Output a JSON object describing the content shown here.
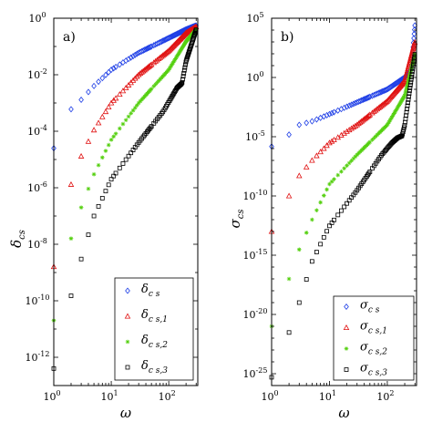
{
  "chart_data": [
    {
      "type": "scatter",
      "panel_label": "a)",
      "xlabel": "ω",
      "ylabel": "δcs",
      "xscale": "log",
      "yscale": "log",
      "xlim": [
        1,
        320
      ],
      "ylim": [
        1e-13,
        1
      ],
      "xticks": [
        {
          "v": 1,
          "b": "10",
          "e": "0"
        },
        {
          "v": 10,
          "b": "10",
          "e": "1"
        },
        {
          "v": 100,
          "b": "10",
          "e": "2"
        }
      ],
      "yticks": [
        {
          "v": 1,
          "b": "10",
          "e": "0"
        },
        {
          "v": 0.01,
          "b": "10",
          "e": "-2"
        },
        {
          "v": 0.0001,
          "b": "10",
          "e": "-4"
        },
        {
          "v": 1e-06,
          "b": "10",
          "e": "-6"
        },
        {
          "v": 1e-08,
          "b": "10",
          "e": "-8"
        },
        {
          "v": 1e-10,
          "b": "10",
          "e": "-10"
        },
        {
          "v": 1e-12,
          "b": "10",
          "e": "-12"
        }
      ],
      "legend_position": "bottom-right",
      "series": [
        {
          "name": "δcs",
          "sym": "δ",
          "sub": "c s",
          "marker": "diamond",
          "color": "#1f3fe6",
          "anchors": [
            [
              1,
              2.5e-05
            ],
            [
              2,
              0.0006
            ],
            [
              3,
              0.0013
            ],
            [
              5,
              0.004
            ],
            [
              10,
              0.015
            ],
            [
              30,
              0.06
            ],
            [
              100,
              0.2
            ],
            [
              200,
              0.4
            ],
            [
              300,
              0.55
            ]
          ]
        },
        {
          "name": "δcs,1",
          "sym": "δ",
          "sub": "c s,1",
          "marker": "triangle",
          "color": "#e01010",
          "anchors": [
            [
              1,
              1.6e-09
            ],
            [
              2,
              1.3e-06
            ],
            [
              3,
              1.3e-05
            ],
            [
              5,
              0.00011
            ],
            [
              10,
              0.001
            ],
            [
              30,
              0.01
            ],
            [
              100,
              0.07
            ],
            [
              200,
              0.3
            ],
            [
              300,
              0.5
            ]
          ]
        },
        {
          "name": "δcs,2",
          "sym": "δ",
          "sub": "c s,2",
          "marker": "star",
          "color": "#55d010",
          "anchors": [
            [
              1,
              2e-11
            ],
            [
              2,
              1.6e-08
            ],
            [
              3,
              2e-07
            ],
            [
              5,
              3e-06
            ],
            [
              10,
              5e-05
            ],
            [
              30,
              0.001
            ],
            [
              100,
              0.015
            ],
            [
              200,
              0.15
            ],
            [
              300,
              0.4
            ]
          ]
        },
        {
          "name": "δcs,3",
          "sym": "δ",
          "sub": "c s,3",
          "marker": "square",
          "color": "#000000",
          "anchors": [
            [
              1,
              4e-13
            ],
            [
              2,
              1.5e-10
            ],
            [
              3,
              3e-09
            ],
            [
              5,
              1e-07
            ],
            [
              10,
              2e-06
            ],
            [
              30,
              4e-05
            ],
            [
              80,
              0.0005
            ],
            [
              110,
              0.0015
            ],
            [
              140,
              0.0035
            ],
            [
              170,
              0.005
            ],
            [
              200,
              0.03
            ],
            [
              300,
              0.4
            ]
          ]
        }
      ]
    },
    {
      "type": "scatter",
      "panel_label": "b)",
      "xlabel": "ω",
      "ylabel": "σcs",
      "xscale": "log",
      "yscale": "log",
      "xlim": [
        1,
        320
      ],
      "ylim": [
        1e-26,
        100000.0
      ],
      "xticks": [
        {
          "v": 1,
          "b": "10",
          "e": "0"
        },
        {
          "v": 10,
          "b": "10",
          "e": "1"
        },
        {
          "v": 100,
          "b": "10",
          "e": "2"
        }
      ],
      "yticks": [
        {
          "v": 100000,
          "b": "10",
          "e": "5"
        },
        {
          "v": 1,
          "b": "10",
          "e": "0"
        },
        {
          "v": 1e-05,
          "b": "10",
          "e": "-5"
        },
        {
          "v": 1e-10,
          "b": "10",
          "e": "-10"
        },
        {
          "v": 1e-15,
          "b": "10",
          "e": "-15"
        },
        {
          "v": 1e-20,
          "b": "10",
          "e": "-20"
        },
        {
          "v": 1e-25,
          "b": "10",
          "e": "-25"
        }
      ],
      "legend_position": "bottom-right",
      "series": [
        {
          "name": "σcs",
          "sym": "σ",
          "sub": "c s",
          "marker": "diamond",
          "color": "#1f3fe6",
          "anchors": [
            [
              1,
              1.5e-06
            ],
            [
              2,
              1.5e-05
            ],
            [
              3,
              0.0001
            ],
            [
              5,
              0.0002
            ],
            [
              10,
              0.0008
            ],
            [
              30,
              0.008
            ],
            [
              100,
              0.1
            ],
            [
              200,
              1
            ],
            [
              260,
              5
            ],
            [
              300,
              30000.0
            ]
          ]
        },
        {
          "name": "σcs,1",
          "sym": "σ",
          "sub": "c s,1",
          "marker": "triangle",
          "color": "#e01010",
          "anchors": [
            [
              1,
              1e-13
            ],
            [
              2,
              1e-10
            ],
            [
              3,
              5e-09
            ],
            [
              5,
              1e-07
            ],
            [
              10,
              3e-06
            ],
            [
              30,
              0.0001
            ],
            [
              100,
              0.01
            ],
            [
              200,
              0.5
            ],
            [
              300,
              1000.0
            ]
          ]
        },
        {
          "name": "σcs,2",
          "sym": "σ",
          "sub": "c s,2",
          "marker": "star",
          "color": "#55d010",
          "anchors": [
            [
              1,
              1e-21
            ],
            [
              2,
              1e-17
            ],
            [
              3,
              3e-15
            ],
            [
              5,
              1e-12
            ],
            [
              10,
              1e-09
            ],
            [
              30,
              3e-07
            ],
            [
              100,
              0.0001
            ],
            [
              200,
              0.03
            ],
            [
              300,
              100.0
            ]
          ]
        },
        {
          "name": "σcs,3",
          "sym": "σ",
          "sub": "c s,3",
          "marker": "square",
          "color": "#000000",
          "anchors": [
            [
              1,
              5e-26
            ],
            [
              2,
              3e-22
            ],
            [
              3,
              1e-19
            ],
            [
              5,
              3e-16
            ],
            [
              10,
              3e-13
            ],
            [
              30,
              3e-10
            ],
            [
              80,
              3e-07
            ],
            [
              120,
              3e-06
            ],
            [
              150,
              8e-06
            ],
            [
              180,
              1.2e-05
            ],
            [
              200,
              0.0001
            ],
            [
              300,
              100.0
            ]
          ]
        }
      ]
    }
  ]
}
